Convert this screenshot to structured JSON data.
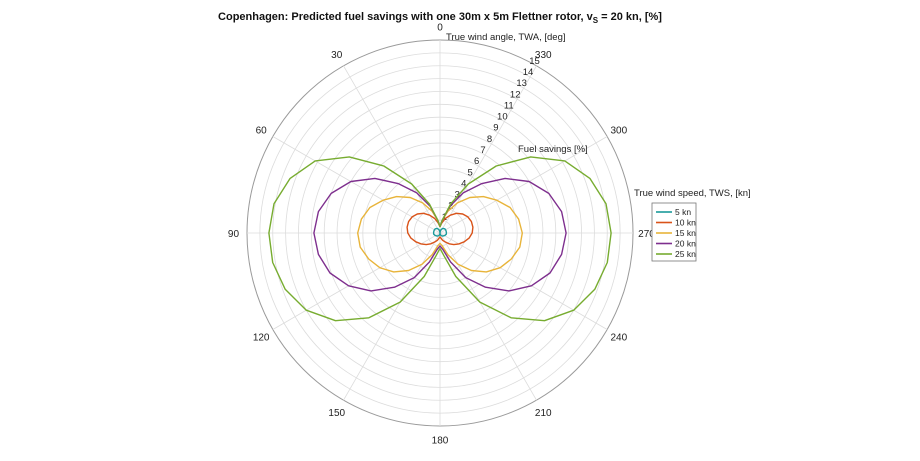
{
  "chart_data": {
    "type": "polar-line",
    "title": {
      "main": "Copenhagen: Predicted fuel savings with one 30m x 5m Flettner rotor, v",
      "sub": "S",
      "tail": " = 20 kn, [%]"
    },
    "theta_label": "True wind angle, TWA, [deg]",
    "r_label": "Fuel savings [%]",
    "legend_title": "True wind speed, TWS, [kn]",
    "theta_zero": "top",
    "theta_direction": "counterclockwise",
    "theta_ticks": [
      "0",
      "30",
      "60",
      "90",
      "120",
      "150",
      "180",
      "210",
      "240",
      "270",
      "300",
      "330"
    ],
    "theta_tick_values": [
      0,
      30,
      60,
      90,
      120,
      150,
      180,
      210,
      240,
      270,
      300,
      330
    ],
    "r_range": [
      0,
      15
    ],
    "r_ticks": [
      "1",
      "2",
      "3",
      "4",
      "5",
      "6",
      "7",
      "8",
      "9",
      "10",
      "11",
      "12",
      "13",
      "14",
      "15"
    ],
    "r_tick_values": [
      1,
      2,
      3,
      4,
      5,
      6,
      7,
      8,
      9,
      10,
      11,
      12,
      13,
      14,
      15
    ],
    "grid": true,
    "legend_position": "right",
    "angles_deg": [
      0,
      10,
      20,
      30,
      40,
      50,
      60,
      70,
      80,
      90,
      100,
      110,
      120,
      130,
      140,
      150,
      160,
      170,
      180
    ],
    "series": [
      {
        "name": "5 kn",
        "color": "#1b9a9a",
        "values": [
          0,
          0.2,
          0.3,
          0.4,
          0.45,
          0.5,
          0.5,
          0.5,
          0.5,
          0.5,
          0.5,
          0.45,
          0.4,
          0.35,
          0.3,
          0.25,
          0.2,
          0.1,
          0
        ]
      },
      {
        "name": "10 kn",
        "color": "#d95319",
        "values": [
          0.5,
          0.8,
          1.2,
          1.6,
          2.0,
          2.3,
          2.5,
          2.6,
          2.6,
          2.5,
          2.3,
          2.0,
          1.7,
          1.4,
          1.1,
          0.8,
          0.6,
          0.4,
          0.3
        ]
      },
      {
        "name": "15 kn",
        "color": "#e8b43a",
        "values": [
          0.5,
          1.0,
          1.8,
          2.7,
          3.6,
          4.4,
          5.1,
          5.8,
          6.2,
          6.4,
          6.3,
          5.9,
          5.4,
          4.7,
          3.8,
          2.8,
          1.8,
          1.0,
          0.8
        ]
      },
      {
        "name": "20 kn",
        "color": "#7e2f8e",
        "values": [
          0.5,
          1.0,
          2.2,
          3.6,
          5.0,
          6.6,
          8.0,
          9.0,
          9.6,
          9.8,
          9.6,
          9.1,
          8.2,
          7.0,
          5.5,
          4.0,
          2.4,
          1.3,
          1.0
        ]
      },
      {
        "name": "25 kn",
        "color": "#77ac30",
        "values": [
          0.5,
          1.0,
          2.4,
          4.4,
          6.8,
          9.2,
          11.2,
          12.4,
          13.1,
          13.3,
          13.2,
          12.8,
          12.0,
          10.6,
          8.6,
          6.2,
          3.6,
          1.8,
          1.2
        ]
      }
    ]
  }
}
